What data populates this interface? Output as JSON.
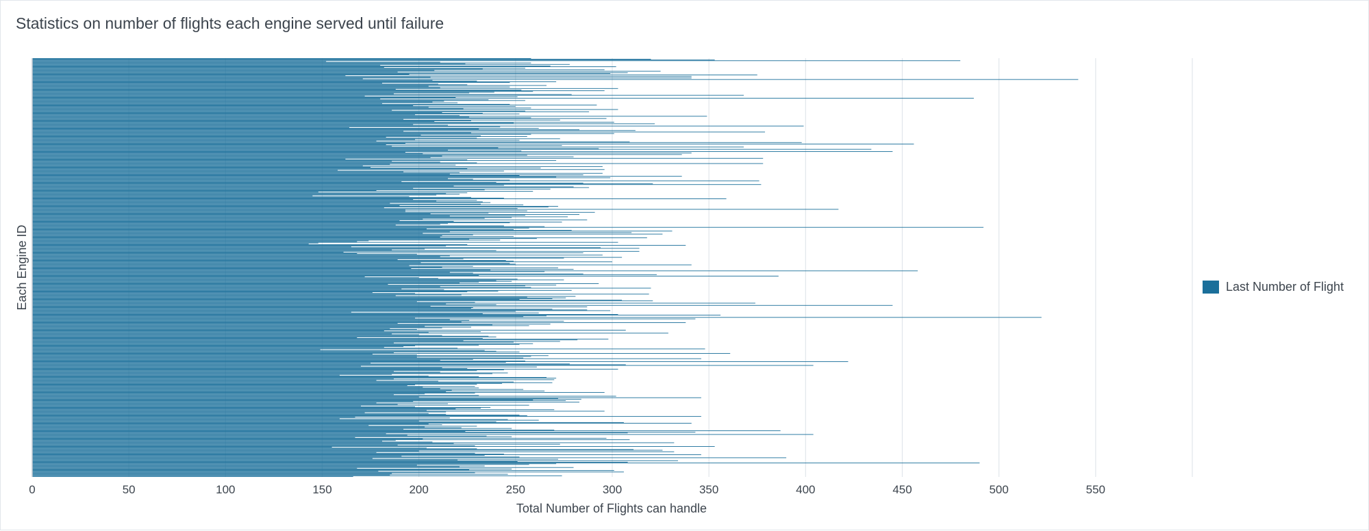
{
  "chart_data": {
    "type": "bar",
    "orientation": "horizontal",
    "title": "Statistics on number of flights each engine served until failure",
    "xlabel": "Total Number of Flights can handle",
    "ylabel": "Each Engine ID",
    "xlim": [
      0,
      600
    ],
    "x_ticks": [
      0,
      50,
      100,
      150,
      200,
      250,
      300,
      350,
      400,
      450,
      500,
      550
    ],
    "gridlines": [
      0,
      50,
      100,
      150,
      200,
      250,
      300,
      350,
      400,
      450,
      500,
      550,
      600
    ],
    "grid": true,
    "legend_position": "right",
    "color": "#1a6f9a",
    "series": [
      {
        "name": "Last Number of Flight",
        "values": [
          258,
          320,
          353,
          480,
          152,
          211,
          258,
          224,
          278,
          180,
          268,
          302,
          182,
          255,
          233,
          296,
          208,
          325,
          189,
          308,
          299,
          195,
          375,
          162,
          341,
          206,
          341,
          171,
          541,
          207,
          230,
          271,
          247,
          181,
          210,
          225,
          266,
          205,
          247,
          211,
          303,
          188,
          253,
          296,
          259,
          239,
          226,
          187,
          279,
          368,
          172,
          251,
          219,
          487,
          180,
          236,
          255,
          213,
          207,
          220,
          181,
          247,
          292,
          197,
          250,
          205,
          258,
          223,
          303,
          186,
          255,
          288,
          212,
          233,
          252,
          198,
          221,
          349,
          226,
          258,
          297,
          192,
          273,
          227,
          208,
          301,
          249,
          322,
          197,
          215,
          399,
          242,
          164,
          262,
          231,
          283,
          312,
          192,
          379,
          227,
          301,
          258,
          201,
          232,
          256,
          183,
          230,
          273,
          198,
          252,
          178,
          309,
          398,
          193,
          456,
          183,
          274,
          186,
          368,
          241,
          293,
          434,
          215,
          253,
          445,
          193,
          341,
          202,
          336,
          256,
          212,
          280,
          206,
          378,
          162,
          225,
          271,
          186,
          211,
          230,
          378,
          185,
          219,
          171,
          295,
          175,
          263,
          225,
          296,
          158,
          244,
          192,
          221,
          295,
          216,
          285,
          252,
          336,
          271,
          299,
          215,
          228,
          247,
          376,
          191,
          240,
          285,
          321,
          377,
          244,
          218,
          280,
          288,
          197,
          268,
          234,
          178,
          259,
          148,
          225,
          214,
          221,
          209,
          145,
          195,
          227,
          244,
          359,
          197,
          230,
          209,
          233,
          237,
          185,
          232,
          254,
          190,
          272,
          267,
          182,
          251,
          417,
          193,
          256,
          193,
          291,
          236,
          206,
          283,
          255,
          216,
          277,
          248,
          234,
          202,
          287,
          190,
          218,
          274,
          247,
          215,
          211,
          188,
          244,
          265,
          492,
          257,
          204,
          249,
          279,
          331,
          216,
          310,
          202,
          326,
          228,
          212,
          249,
          211,
          318,
          261,
          226,
          242,
          174,
          168,
          303,
          148,
          143,
          225,
          338,
          214,
          165,
          294,
          314,
          203,
          186,
          240,
          314,
          161,
          285,
          168,
          199,
          295,
          216,
          211,
          305,
          275,
          223,
          189,
          245,
          249,
          300,
          201,
          247,
          250,
          341,
          195,
          228,
          212,
          272,
          196,
          280,
          237,
          458,
          265,
          216,
          228,
          285,
          323,
          231,
          386,
          172,
          200,
          210,
          251,
          275,
          240,
          248,
          231,
          221,
          293,
          184,
          271,
          255,
          211,
          258,
          320,
          191,
          213,
          279,
          241,
          225,
          176,
          198,
          319,
          222,
          188,
          281,
          256,
          276,
          269,
          252,
          305,
          321,
          199,
          229,
          374,
          214,
          240,
          445,
          206,
          287,
          228,
          227,
          269,
          287,
          299,
          250,
          165,
          262,
          233,
          303,
          356,
          266,
          254,
          522,
          198,
          343,
          216,
          226,
          275,
          222,
          338,
          189,
          268,
          238,
          257,
          203,
          227,
          212,
          185,
          199,
          307,
          182,
          232,
          205,
          329,
          186,
          200,
          212,
          236,
          240,
          168,
          233,
          298,
          282,
          223,
          273,
          249,
          187,
          259,
          252,
          231,
          198,
          192,
          182,
          220,
          348,
          149,
          234,
          240,
          252,
          187,
          361,
          176,
          199,
          267,
          258,
          199,
          254,
          346,
          228,
          211,
          255,
          422,
          245,
          175,
          278,
          307,
          404,
          170,
          261,
          212,
          225,
          303,
          244,
          230,
          187,
          211,
          246,
          238,
          186,
          159,
          205,
          231,
          266,
          271,
          187,
          270,
          178,
          210,
          249,
          269,
          243,
          230,
          198,
          194,
          229,
          202,
          231,
          211,
          254,
          217,
          265,
          214,
          296,
          229,
          203,
          187,
          231,
          302,
          200,
          346,
          272,
          284,
          259,
          276,
          197,
          283,
          178,
          215,
          189,
          257,
          170,
          198,
          237,
          232,
          219,
          270,
          204,
          296,
          214,
          172,
          205,
          214,
          252,
          256,
          346,
          167,
          216,
          159,
          246,
          262,
          200,
          240,
          306,
          341,
          205,
          212,
          174,
          230,
          203,
          222,
          248,
          192,
          270,
          387,
          224,
          343,
          308,
          183,
          404,
          194,
          235,
          248,
          167,
          297,
          202,
          309,
          188,
          181,
          207,
          332,
          218,
          273,
          189,
          229,
          353,
          155,
          204,
          230,
          311,
          326,
          200,
          332,
          178,
          229,
          244,
          346,
          234,
          191,
          252,
          390,
          176,
          272,
          220,
          334,
          251,
          308,
          490,
          271,
          257,
          199,
          234,
          221,
          280,
          168,
          248,
          226,
          301,
          179,
          306,
          229,
          186,
          246,
          185,
          274,
          166
        ]
      }
    ]
  }
}
